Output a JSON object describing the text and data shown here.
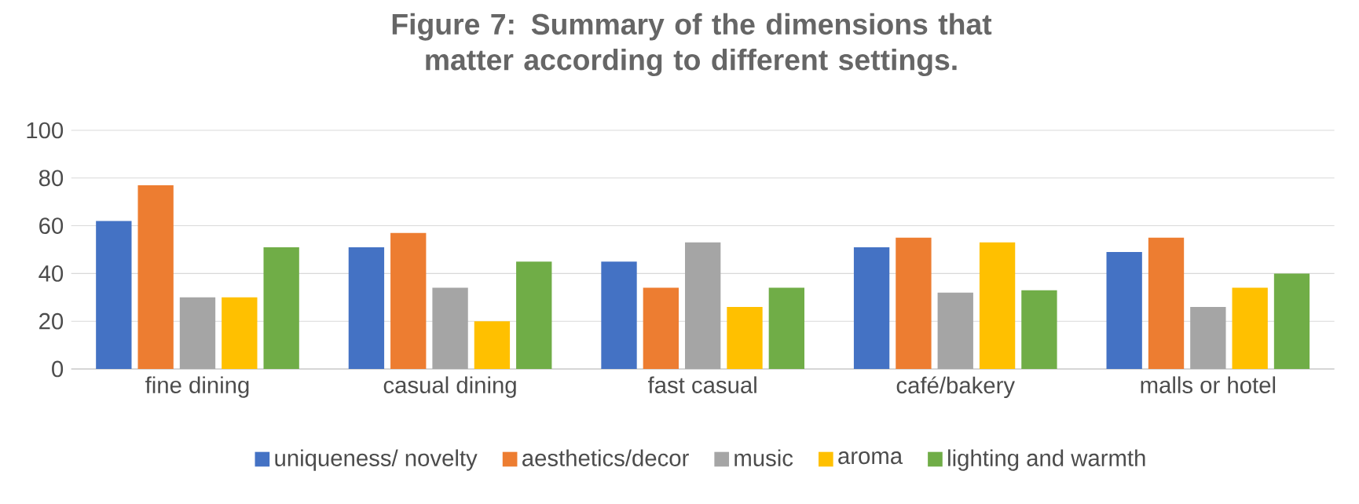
{
  "chart_data": {
    "type": "bar",
    "title": "Figure 7: Summary of the dimensions that matter according to different settings.",
    "categories": [
      "fine dining",
      "casual dining",
      "fast casual",
      "café/bakery",
      "malls or hotel"
    ],
    "series": [
      {
        "name": "uniqueness/ novelty",
        "color": "#4472c4",
        "values": [
          62,
          51,
          45,
          51,
          49
        ]
      },
      {
        "name": "aesthetics/decor",
        "color": "#ed7d31",
        "values": [
          77,
          57,
          34,
          55,
          55
        ]
      },
      {
        "name": "music",
        "color": "#a5a5a5",
        "values": [
          30,
          34,
          53,
          32,
          26
        ]
      },
      {
        "name": "aroma",
        "color": "#ffc000",
        "values": [
          30,
          20,
          26,
          53,
          34
        ]
      },
      {
        "name": "lighting and warmth",
        "color": "#70ad47",
        "values": [
          51,
          45,
          34,
          33,
          40
        ]
      }
    ],
    "ylim": [
      0,
      100
    ],
    "yticks": [
      0,
      20,
      40,
      60,
      80,
      100
    ],
    "grid": "y",
    "legend": "bottom"
  }
}
